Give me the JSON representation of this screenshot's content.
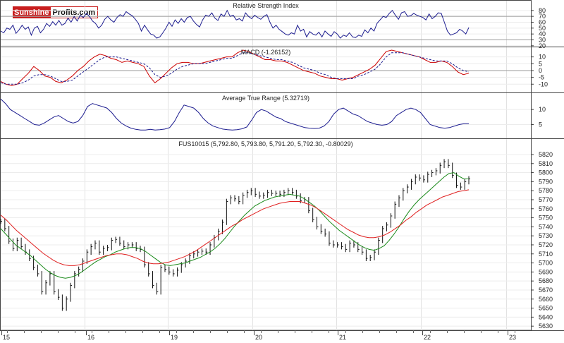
{
  "logo": {
    "part1": "Sunshine",
    "part2": "Profits.com"
  },
  "chart_data": {
    "type": "line",
    "x_labels": [
      "15",
      "16",
      "19",
      "20",
      "21",
      "22",
      "23"
    ],
    "panels": [
      {
        "id": "rsi",
        "title": "Relative Strength Index",
        "y_ticks": [
          80,
          70,
          60,
          50,
          40,
          30,
          20
        ],
        "ylim": [
          21,
          87
        ],
        "ref_lines": [
          70,
          30
        ],
        "series": [
          {
            "color": "#1c1c8f",
            "values": [
              45,
              42,
              50,
              48,
              55,
              41,
              47,
              55,
              48,
              52,
              38,
              50,
              53,
              42,
              48,
              58,
              53,
              61,
              55,
              63,
              55,
              58,
              67,
              60,
              70,
              62,
              72,
              68,
              75,
              70,
              62,
              58,
              50,
              55,
              65,
              70,
              64,
              60,
              68,
              73,
              70,
              78,
              74,
              71,
              65,
              58,
              45,
              55,
              47,
              40,
              38,
              33,
              35,
              42,
              50,
              60,
              53,
              64,
              58,
              66,
              60,
              68,
              70,
              62,
              56,
              52,
              64,
              72,
              70,
              76,
              67,
              63,
              74,
              70,
              80,
              70,
              72,
              64,
              66,
              62,
              76,
              70,
              66,
              72,
              68,
              65,
              70,
              73,
              60,
              50,
              55,
              48,
              44,
              40,
              38,
              42,
              40,
              55,
              45,
              48,
              35,
              44,
              40,
              38,
              43,
              35,
              45,
              40,
              36,
              44,
              40,
              33,
              38,
              36,
              42,
              35,
              34,
              38,
              36,
              47,
              42,
              50,
              45,
              58,
              64,
              70,
              68,
              75,
              80,
              72,
              65,
              76,
              78,
              70,
              71,
              75,
              72,
              70,
              68,
              64,
              74,
              66,
              70,
              76,
              75,
              60,
              45,
              38,
              40,
              42,
              48,
              45,
              40,
              51
            ]
          }
        ]
      },
      {
        "id": "macd",
        "title": "MACD (-1.26152)",
        "y_ticks": [
          10,
          5,
          0,
          -5,
          -10
        ],
        "ylim": [
          -14,
          15.5
        ],
        "ref_lines": [
          0
        ],
        "series": [
          {
            "color": "#cc0000",
            "dash": false,
            "values": [
              -8,
              -10,
              -11,
              -10,
              -6,
              -2,
              3,
              0,
              -4,
              -5,
              -8,
              -9,
              -7,
              -4,
              0,
              3,
              7,
              10,
              12,
              11,
              9,
              8,
              6,
              7,
              6,
              5,
              3,
              -4,
              -9,
              -6,
              -2,
              2,
              5,
              6,
              6,
              5,
              5,
              6,
              7,
              8,
              9,
              10,
              10,
              13,
              15,
              14,
              12,
              10,
              8,
              8,
              7,
              7,
              6,
              4,
              2,
              0,
              -1,
              -2,
              -4,
              -5,
              -6,
              -6,
              -7,
              -6,
              -5,
              -3,
              -1,
              1,
              4,
              9,
              14,
              15,
              14,
              13,
              12,
              11,
              10,
              8,
              6,
              6,
              7,
              6,
              3,
              -1,
              -3,
              -2
            ]
          },
          {
            "color": "#1c1c8f",
            "dash": true,
            "values": [
              -9,
              -10,
              -10,
              -10,
              -9,
              -7,
              -4,
              -3,
              -3,
              -4,
              -6,
              -8,
              -8,
              -7,
              -4,
              -1,
              2,
              5,
              8,
              10,
              10,
              10,
              9,
              8,
              7,
              6,
              5,
              2,
              -3,
              -5,
              -4,
              -2,
              1,
              3,
              4,
              5,
              5,
              5,
              6,
              7,
              8,
              9,
              9,
              11,
              13,
              13,
              12,
              11,
              10,
              9,
              8,
              8,
              7,
              6,
              4,
              2,
              1,
              0,
              -2,
              -3,
              -5,
              -6,
              -6,
              -6,
              -6,
              -4,
              -3,
              -1,
              1,
              5,
              10,
              13,
              13,
              13,
              12,
              11,
              10,
              9,
              8,
              7,
              7,
              7,
              5,
              2,
              0,
              -1
            ]
          }
        ]
      },
      {
        "id": "atr",
        "title": "Average True Range (5.32719)",
        "y_ticks": [
          10,
          5
        ],
        "ylim": [
          1.6,
          14.5
        ],
        "ref_lines": [],
        "series": [
          {
            "color": "#1c1c8f",
            "values": [
              13.5,
              12,
              10,
              9,
              8,
              7,
              6,
              5,
              4.8,
              5.5,
              6.5,
              7.5,
              8,
              7,
              6,
              5.5,
              6,
              8,
              11,
              12,
              11.5,
              11,
              10.5,
              9,
              7,
              5.5,
              4.5,
              3.8,
              3.4,
              3.2,
              3.2,
              3.4,
              3.2,
              3.3,
              3.5,
              4,
              6,
              9,
              11.5,
              11,
              10.5,
              9,
              7,
              5.5,
              4.5,
              4,
              3.5,
              3.3,
              3.2,
              3.3,
              3.6,
              4.2,
              6.5,
              9,
              10,
              9.5,
              8.5,
              7.5,
              7,
              6,
              5.5,
              5,
              4.5,
              4,
              3.8,
              3.7,
              3.8,
              4.5,
              6,
              8.5,
              10,
              10.5,
              9.5,
              8.5,
              8,
              7,
              6,
              5.5,
              5,
              4.8,
              5,
              6,
              8,
              9,
              10,
              10.5,
              10,
              9,
              7,
              5,
              4.5,
              4,
              3.8,
              4,
              4.5,
              5,
              5.3,
              5.3
            ]
          }
        ]
      },
      {
        "id": "price",
        "title": "FUS10015 (5,792.80, 5,793.80, 5,791.20, 5,792.30, -0.80029)",
        "y_ticks": [
          5820,
          5810,
          5800,
          5790,
          5780,
          5770,
          5760,
          5750,
          5740,
          5730,
          5720,
          5710,
          5700,
          5690,
          5680,
          5670,
          5660,
          5650,
          5640,
          5630
        ],
        "ylim": [
          5627,
          5827
        ],
        "ref_lines": [],
        "series": [
          {
            "name": "",
            "color": "#111111",
            "kind": "bars",
            "values": [
              5746,
              5738,
              5724,
              5716,
              5725,
              5718,
              5712,
              5705,
              5695,
              5688,
              5668,
              5678,
              5688,
              5668,
              5662,
              5650,
              5660,
              5675,
              5688,
              5693,
              5702,
              5712,
              5718,
              5722,
              5712,
              5716,
              5717,
              5725,
              5726,
              5722,
              5718,
              5720,
              5720,
              5716,
              5715,
              5698,
              5688,
              5675,
              5668,
              5695,
              5693,
              5690,
              5688,
              5692,
              5698,
              5702,
              5708,
              5710,
              5712,
              5713,
              5712,
              5720,
              5728,
              5735,
              5745,
              5768,
              5772,
              5771,
              5768,
              5775,
              5778,
              5780,
              5776,
              5774,
              5775,
              5778,
              5777,
              5777,
              5776,
              5778,
              5780,
              5778,
              5774,
              5769,
              5770,
              5758,
              5748,
              5740,
              5735,
              5732,
              5722,
              5720,
              5720,
              5718,
              5715,
              5722,
              5720,
              5715,
              5712,
              5705,
              5706,
              5712,
              5725,
              5738,
              5742,
              5752,
              5765,
              5772,
              5780,
              5784,
              5790,
              5795,
              5794,
              5792,
              5798,
              5800,
              5802,
              5808,
              5812,
              5808,
              5797,
              5786,
              5784,
              5790,
              5793
            ]
          },
          {
            "name": "",
            "color": "#1a8a1a",
            "values": [
              5738,
              5732,
              5726,
              5720,
              5716,
              5712,
              5708,
              5703,
              5698,
              5693,
              5689,
              5686,
              5684,
              5683,
              5684,
              5686,
              5689,
              5693,
              5697,
              5701,
              5704,
              5707,
              5709,
              5712,
              5714,
              5716,
              5717,
              5717,
              5716,
              5713,
              5709,
              5705,
              5701,
              5698,
              5697,
              5698,
              5699,
              5700,
              5702,
              5704,
              5706,
              5709,
              5712,
              5716,
              5721,
              5727,
              5734,
              5741,
              5747,
              5753,
              5758,
              5763,
              5766,
              5769,
              5771,
              5773,
              5774,
              5775,
              5776,
              5775,
              5774,
              5771,
              5767,
              5763,
              5758,
              5752,
              5746,
              5741,
              5736,
              5732,
              5728,
              5724,
              5720,
              5717,
              5715,
              5714,
              5716,
              5719,
              5725,
              5732,
              5740,
              5749,
              5757,
              5764,
              5770,
              5775,
              5780,
              5785,
              5790,
              5795,
              5799,
              5800,
              5796,
              5793,
              5793
            ]
          },
          {
            "name": "",
            "color": "#e02020",
            "values": [
              5753,
              5748,
              5742,
              5736,
              5731,
              5726,
              5721,
              5716,
              5711,
              5707,
              5703,
              5700,
              5698,
              5697,
              5697,
              5698,
              5700,
              5702,
              5704,
              5706,
              5708,
              5709,
              5710,
              5710,
              5709,
              5707,
              5705,
              5702,
              5700,
              5699,
              5699,
              5700,
              5701,
              5703,
              5705,
              5707,
              5710,
              5713,
              5717,
              5721,
              5725,
              5729,
              5733,
              5737,
              5741,
              5744,
              5748,
              5751,
              5754,
              5757,
              5760,
              5762,
              5764,
              5766,
              5767,
              5768,
              5768,
              5768,
              5766,
              5764,
              5761,
              5757,
              5753,
              5749,
              5745,
              5741,
              5737,
              5734,
              5731,
              5729,
              5728,
              5728,
              5729,
              5731,
              5734,
              5738,
              5742,
              5747,
              5751,
              5756,
              5760,
              5764,
              5767,
              5770,
              5773,
              5775,
              5777,
              5779,
              5780,
              5781
            ]
          }
        ]
      }
    ]
  }
}
